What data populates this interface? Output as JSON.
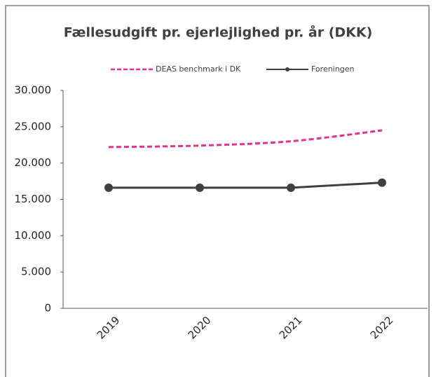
{
  "chart_data": {
    "type": "line",
    "title": "Fællesudgift pr. ejerlejlighed pr. år (DKK)",
    "categories": [
      "2019",
      "2020",
      "2021",
      "2022"
    ],
    "series": [
      {
        "name": "DEAS benchmark i DK",
        "color": "#e0338a",
        "values": [
          22200,
          22400,
          23000,
          24500
        ]
      },
      {
        "name": "Foreningen",
        "color": "#404040",
        "values": [
          16600,
          16600,
          16600,
          17300
        ]
      }
    ],
    "ylim": [
      0,
      30000
    ],
    "yticks": [
      0,
      {
        "value": 5000,
        "label": "5.000"
      },
      {
        "value": 10000,
        "label": "10.000"
      },
      {
        "value": 15000,
        "label": "15.000"
      },
      {
        "value": 20000,
        "label": "20.000"
      },
      {
        "value": 25000,
        "label": "25.000"
      },
      {
        "value": 30000,
        "label": "30.000"
      }
    ],
    "legend": "top"
  }
}
